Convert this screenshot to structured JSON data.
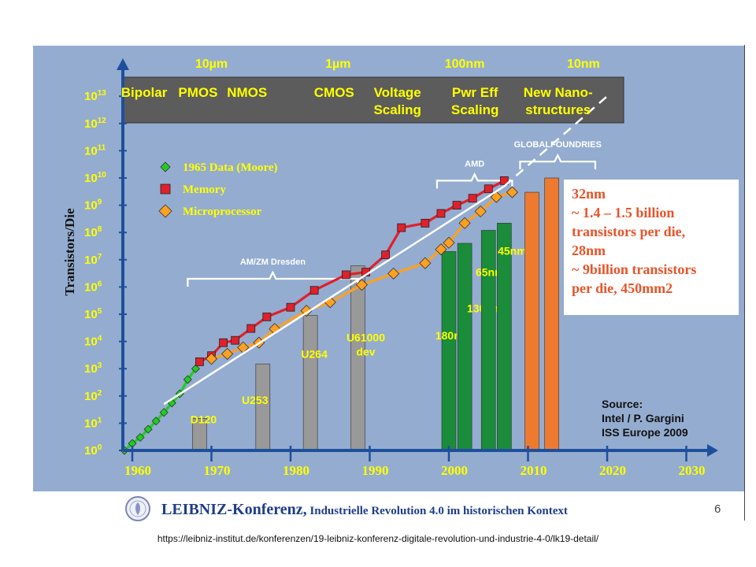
{
  "chart_data": {
    "type": "line",
    "ylabel": "Transistors/Die",
    "y_scale": "log10",
    "ylim": [
      1,
      10000000000000.0
    ],
    "xlim": [
      1958,
      2031
    ],
    "x_ticks": [
      "1960",
      "1970",
      "1980",
      "1990",
      "2000",
      "2010",
      "2020",
      "2030"
    ],
    "y_ticks": [
      {
        "base": "10",
        "exp": "0"
      },
      {
        "base": "10",
        "exp": "1"
      },
      {
        "base": "10",
        "exp": "2"
      },
      {
        "base": "10",
        "exp": "3"
      },
      {
        "base": "10",
        "exp": "4"
      },
      {
        "base": "10",
        "exp": "5"
      },
      {
        "base": "10",
        "exp": "6"
      },
      {
        "base": "10",
        "exp": "7"
      },
      {
        "base": "10",
        "exp": "8"
      },
      {
        "base": "10",
        "exp": "9"
      },
      {
        "base": "10",
        "exp": "10"
      },
      {
        "base": "10",
        "exp": "11"
      },
      {
        "base": "10",
        "exp": "12"
      },
      {
        "base": "10",
        "exp": "13"
      }
    ],
    "feature_sizes": [
      {
        "label": "10µm",
        "x": 1970
      },
      {
        "label": "1µm",
        "x": 1986
      },
      {
        "label": "100nm",
        "x": 2002
      },
      {
        "label": "10nm",
        "x": 2017
      }
    ],
    "technologies": [
      {
        "label": [
          "Bipolar"
        ],
        "x": 1961.5
      },
      {
        "label": [
          "PMOS"
        ],
        "x": 1968.3
      },
      {
        "label": [
          "NMOS"
        ],
        "x": 1974.5
      },
      {
        "label": [
          "CMOS"
        ],
        "x": 1985.5
      },
      {
        "label": [
          "Voltage",
          "Scaling"
        ],
        "x": 1993.5
      },
      {
        "label": [
          "Pwr Eff",
          "Scaling"
        ],
        "x": 2003.3
      },
      {
        "label": [
          "New Nano-",
          "structures"
        ],
        "x": 2013.8
      }
    ],
    "series": [
      {
        "name": "1965 Data (Moore)",
        "color": "#22cc22",
        "marker": "diamond",
        "points": [
          [
            1959,
            1
          ],
          [
            1960,
            1.8
          ],
          [
            1961,
            3
          ],
          [
            1962,
            6
          ],
          [
            1963,
            12
          ],
          [
            1964,
            25
          ],
          [
            1965,
            55
          ],
          [
            1966,
            120
          ],
          [
            1967,
            400
          ],
          [
            1968,
            1000
          ]
        ]
      },
      {
        "name": "Memory",
        "color": "#e0202a",
        "marker": "square",
        "points": [
          [
            1968.5,
            1800
          ],
          [
            1970,
            3000
          ],
          [
            1971.5,
            9000
          ],
          [
            1973,
            11000
          ],
          [
            1975,
            30000
          ],
          [
            1977,
            80000
          ],
          [
            1980,
            180000
          ],
          [
            1983,
            750000
          ],
          [
            1987,
            2800000
          ],
          [
            1989.5,
            3500000
          ],
          [
            1992,
            15000000
          ],
          [
            1994,
            150000000
          ],
          [
            1997,
            220000000
          ],
          [
            1999,
            500000000
          ],
          [
            2001,
            1000000000
          ],
          [
            2003,
            1800000000
          ],
          [
            2005,
            4000000000
          ],
          [
            2007,
            8000000000
          ]
        ]
      },
      {
        "name": "Microprocessor",
        "color": "#ffa020",
        "marker": "diamond",
        "points": [
          [
            1970,
            2300
          ],
          [
            1972,
            3500
          ],
          [
            1974,
            6000
          ],
          [
            1976,
            9000
          ],
          [
            1978,
            29000
          ],
          [
            1982,
            134000
          ],
          [
            1985,
            275000
          ],
          [
            1989,
            1200000
          ],
          [
            1993,
            3100000
          ],
          [
            1997,
            7500000
          ],
          [
            1999,
            24000000
          ],
          [
            2000,
            42000000
          ],
          [
            2002,
            220000000
          ],
          [
            2004,
            592000000
          ],
          [
            2006,
            2000000000
          ],
          [
            2008,
            3000000000
          ]
        ]
      },
      {
        "name": "Trend",
        "color": "#ffffff",
        "marker": "none",
        "points": [
          [
            1964,
            50
          ],
          [
            2007,
            5000000000
          ]
        ]
      },
      {
        "name": "Projection",
        "color": "#ffffff",
        "marker": "none",
        "dashed": true,
        "points": [
          [
            2007,
            5000000000
          ],
          [
            2020,
            10000000000000
          ]
        ]
      }
    ],
    "bars": [
      {
        "label": [
          "D120"
        ],
        "x": 1968.5,
        "value": 15,
        "color": "#999999",
        "label_pos": [
          1969,
          10
        ]
      },
      {
        "label": [
          "U253"
        ],
        "x": 1976.5,
        "value": 1500,
        "color": "#999999",
        "label_pos": [
          1975.5,
          50
        ]
      },
      {
        "label": [
          "U264"
        ],
        "x": 1982.5,
        "value": 90000,
        "color": "#999999",
        "label_pos": [
          1983,
          2500
        ]
      },
      {
        "label": [
          "U61000",
          "dev"
        ],
        "x": 1988.5,
        "value": 6000000,
        "color": "#999999",
        "label_pos": [
          1989.5,
          10000
        ]
      },
      {
        "label": [
          "180nm"
        ],
        "x": 2000,
        "value": 20000000,
        "color": "#1a8c3a",
        "label_pos": [
          2000.5,
          12000
        ]
      },
      {
        "label": [
          "130nm"
        ],
        "x": 2002,
        "value": 40000000,
        "color": "#1a8c3a",
        "label_pos": [
          2004.5,
          120000
        ]
      },
      {
        "label": [
          "65nm"
        ],
        "x": 2005,
        "value": 120000000,
        "color": "#1a8c3a",
        "label_pos": [
          2005.2,
          2500000
        ]
      },
      {
        "label": [
          "45nm"
        ],
        "x": 2007,
        "value": 220000000,
        "color": "#1a8c3a",
        "label_pos": [
          2008,
          15000000
        ]
      },
      {
        "label": [
          ""
        ],
        "x": 2010.5,
        "value": 3000000000,
        "color": "#ee7a30"
      },
      {
        "label": [
          ""
        ],
        "x": 2013,
        "value": 10000000000,
        "color": "#ee7a30"
      }
    ],
    "annotations": [
      {
        "text": "AM/ZM Dresden",
        "x0": 1967,
        "x1": 1988.5,
        "y": 2000000
      },
      {
        "text": "AMD",
        "x0": 1998.5,
        "x1": 2008,
        "y": 8000000000
      },
      {
        "text": "GLOBALFOUNDRIES",
        "x0": 2009,
        "x1": 2018.5,
        "y": 40000000000
      }
    ],
    "legend": {
      "position": "top-left",
      "entries": [
        {
          "label": "1965 Data (Moore)",
          "marker": "diamond",
          "color": "#22cc22"
        },
        {
          "label": "Memory",
          "marker": "square",
          "color": "#e0202a"
        },
        {
          "label": "Microprocessor",
          "marker": "diamond",
          "color": "#ffa020"
        }
      ]
    },
    "grid": false
  },
  "callout": {
    "lines": [
      "32nm",
      "~ 1.4 – 1.5 billion",
      "transistors per die,",
      "28nm",
      "~ 9billion transistors",
      "per die, 450mm2"
    ],
    "color": "#e8542a"
  },
  "source": {
    "lines": [
      "Source:",
      "Intel / P. Gargini",
      "ISS Europe 2009"
    ]
  },
  "footer": {
    "title_big": "LEIBNIZ-Konferenz,",
    "title_small": " Industrielle Revolution 4.0 im historischen Kontext",
    "slide_number": "6",
    "url": "https://leibniz-institut.de/konferenzen/19-leibniz-konferenz-digitale-revolution-und-industrie-4-0/lk19-detail/"
  },
  "colors": {
    "panel": "#94acd0",
    "tech_band": "#5c5c5c",
    "axis": "#1e4f9c",
    "text_yellow": "#ffff00"
  }
}
